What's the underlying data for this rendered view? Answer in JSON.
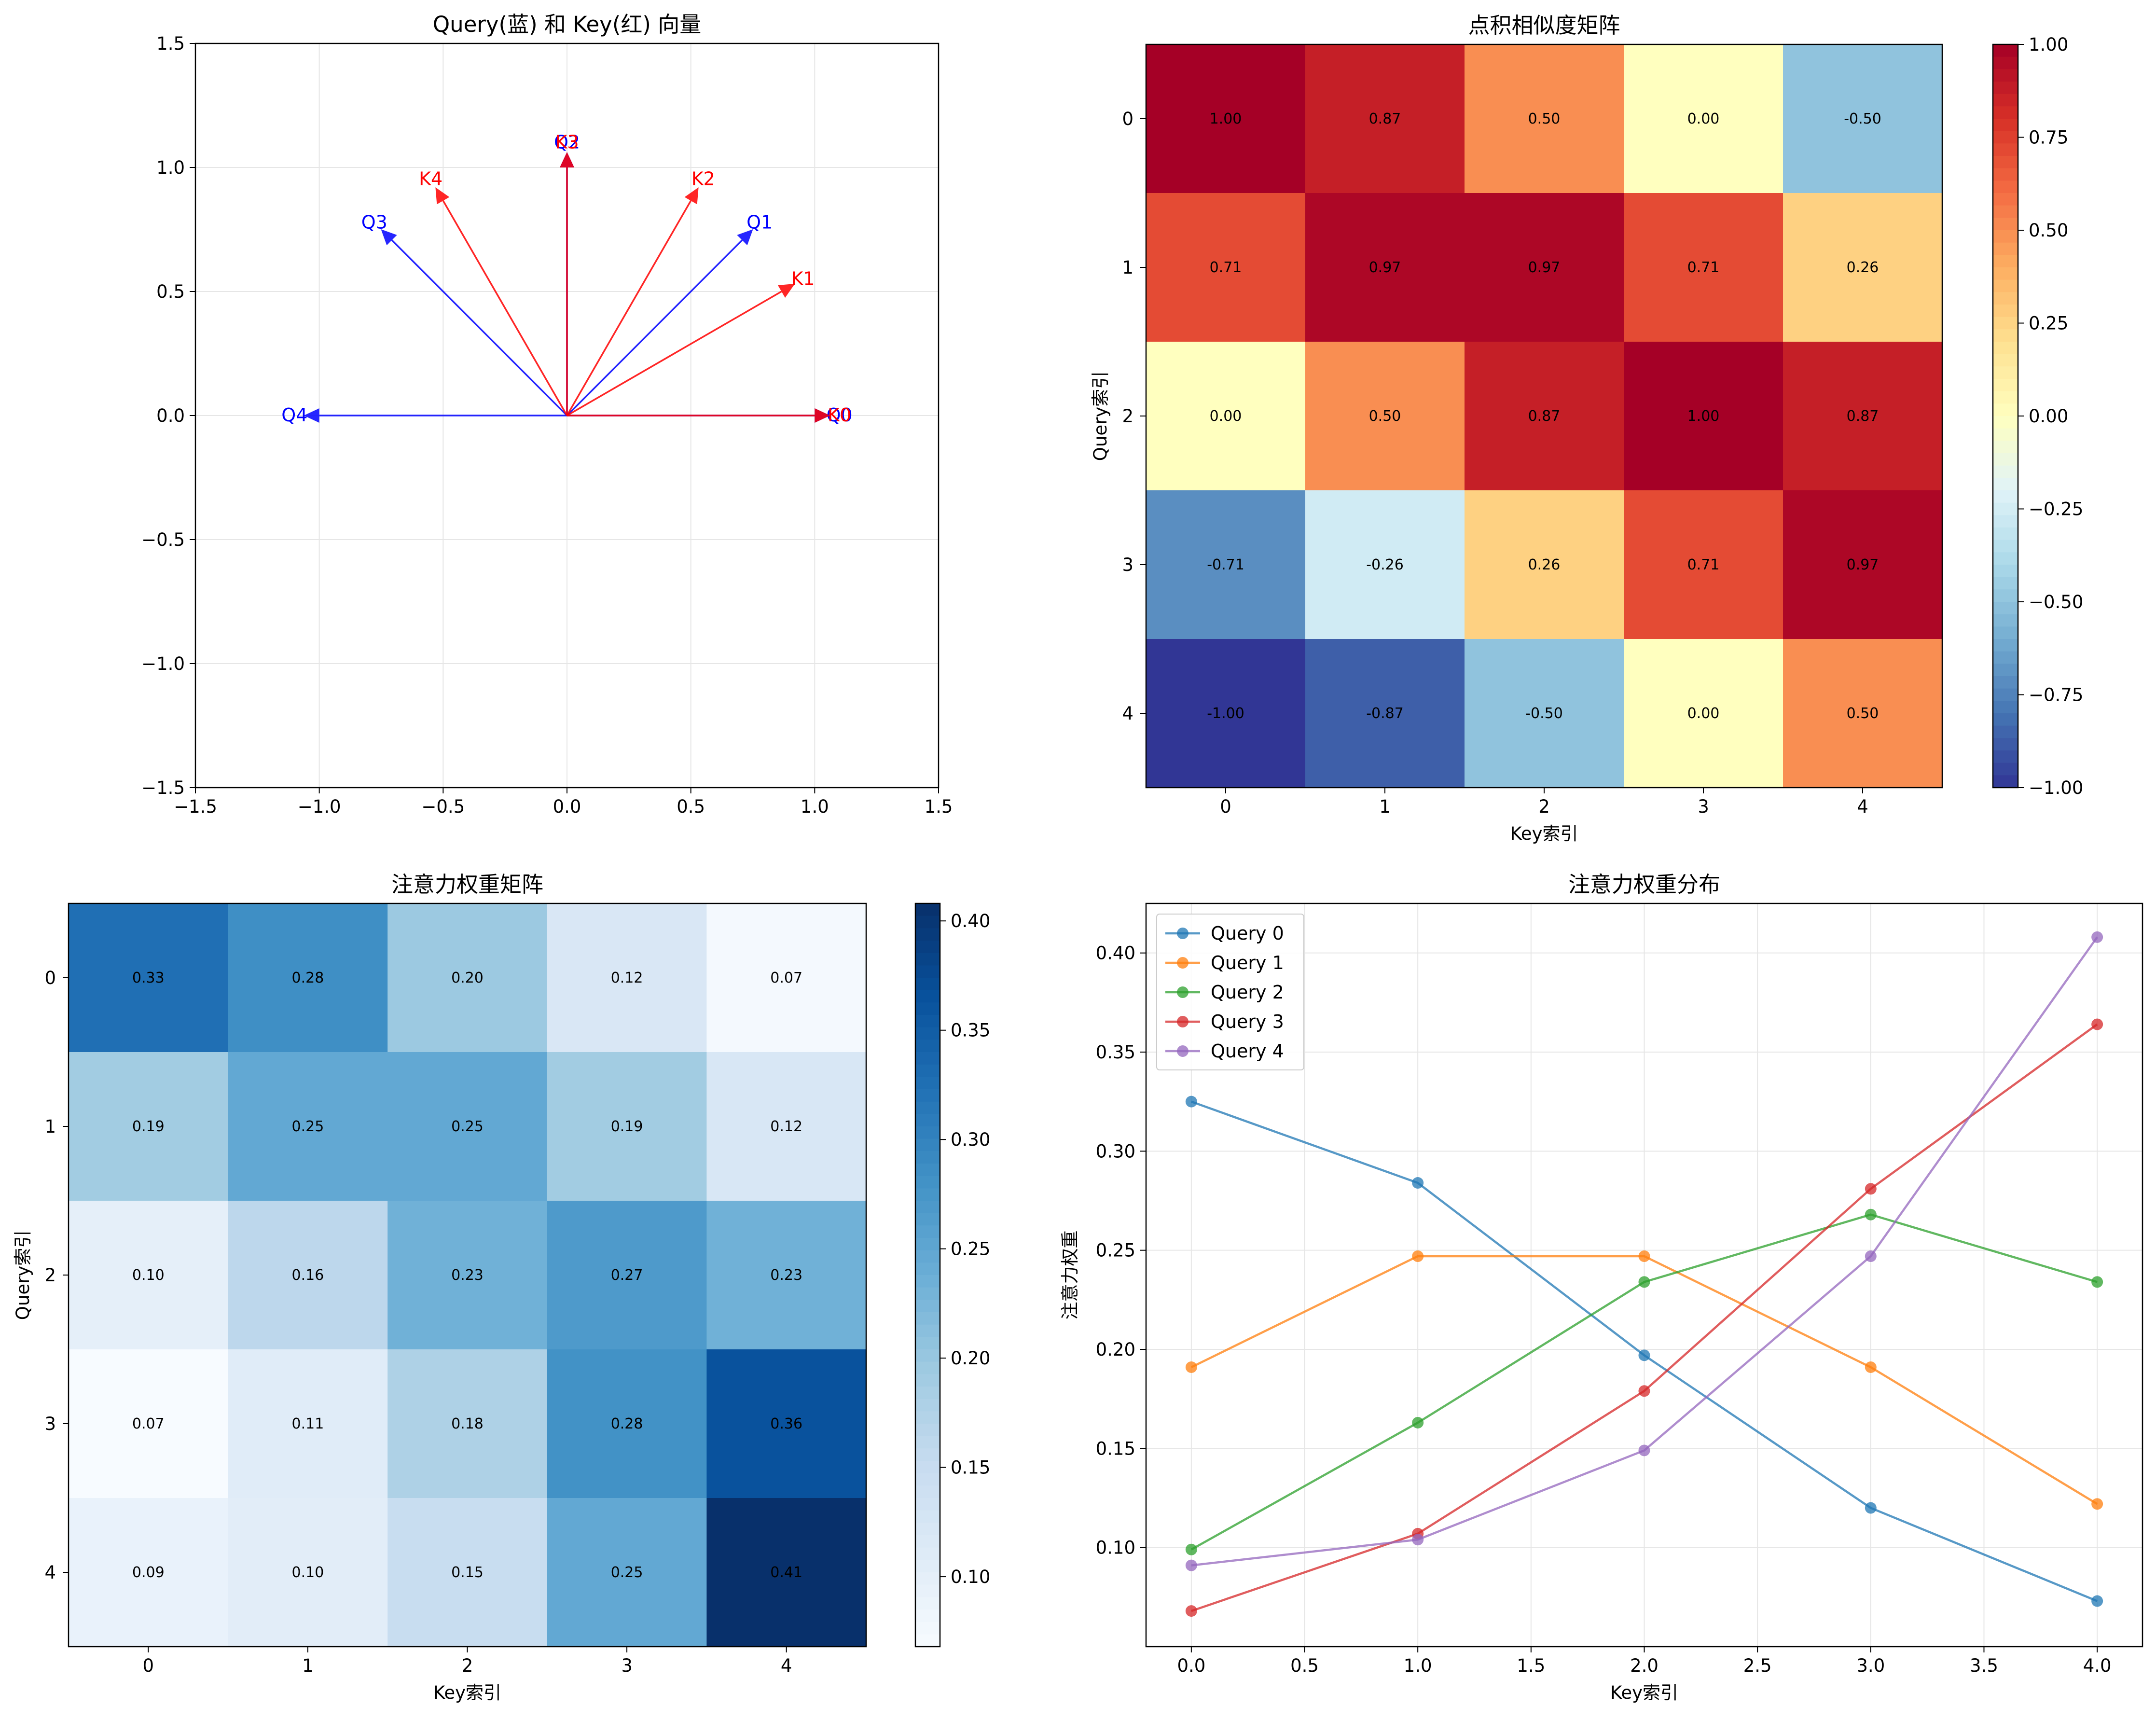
{
  "chart_data": [
    {
      "type": "vector",
      "title": "Query(蓝) 和 Key(红) 向量",
      "xlim": [
        -1.5,
        1.5
      ],
      "ylim": [
        -1.5,
        1.5
      ],
      "xticks": [
        "−1.5",
        "−1.0",
        "−0.5",
        "0.0",
        "0.5",
        "1.0",
        "1.5"
      ],
      "yticks": [
        "−1.5",
        "−1.0",
        "−0.5",
        "0.0",
        "0.5",
        "1.0",
        "1.5"
      ],
      "grid": true,
      "queries": [
        {
          "name": "Q0",
          "x": 1.0,
          "y": 0.0
        },
        {
          "name": "Q1",
          "x": 0.707,
          "y": 0.707
        },
        {
          "name": "Q2",
          "x": 0.0,
          "y": 1.0
        },
        {
          "name": "Q3",
          "x": -0.707,
          "y": 0.707
        },
        {
          "name": "Q4",
          "x": -1.0,
          "y": 0.0
        }
      ],
      "keys": [
        {
          "name": "K0",
          "x": 1.0,
          "y": 0.0
        },
        {
          "name": "K1",
          "x": 0.866,
          "y": 0.5
        },
        {
          "name": "K2",
          "x": 0.5,
          "y": 0.866
        },
        {
          "name": "K3",
          "x": 0.0,
          "y": 1.0
        },
        {
          "name": "K4",
          "x": -0.5,
          "y": 0.866
        }
      ],
      "query_color": "#0000ff",
      "key_color": "#ff0000"
    },
    {
      "type": "heatmap",
      "title": "点积相似度矩阵",
      "xlabel": "Key索引",
      "ylabel": "Query索引",
      "categories_x": [
        "0",
        "1",
        "2",
        "3",
        "4"
      ],
      "categories_y": [
        "0",
        "1",
        "2",
        "3",
        "4"
      ],
      "colormap": "RdYlBu_r",
      "vmin": -1.0,
      "vmax": 1.0,
      "colorbar_ticks": [
        "−1.00",
        "−0.75",
        "−0.50",
        "−0.25",
        "0.00",
        "0.25",
        "0.50",
        "0.75",
        "1.00"
      ],
      "values": [
        [
          1.0,
          0.87,
          0.5,
          0.0,
          -0.5
        ],
        [
          0.71,
          0.97,
          0.97,
          0.71,
          0.26
        ],
        [
          0.0,
          0.5,
          0.87,
          1.0,
          0.87
        ],
        [
          -0.71,
          -0.26,
          0.26,
          0.71,
          0.97
        ],
        [
          -1.0,
          -0.87,
          -0.5,
          0.0,
          0.5
        ]
      ],
      "labels": [
        [
          "1.00",
          "0.87",
          "0.50",
          "0.00",
          "-0.50"
        ],
        [
          "0.71",
          "0.97",
          "0.97",
          "0.71",
          "0.26"
        ],
        [
          "0.00",
          "0.50",
          "0.87",
          "1.00",
          "0.87"
        ],
        [
          "-0.71",
          "-0.26",
          "0.26",
          "0.71",
          "0.97"
        ],
        [
          "-1.00",
          "-0.87",
          "-0.50",
          "0.00",
          "0.50"
        ]
      ]
    },
    {
      "type": "heatmap",
      "title": "注意力权重矩阵",
      "xlabel": "Key索引",
      "ylabel": "Query索引",
      "categories_x": [
        "0",
        "1",
        "2",
        "3",
        "4"
      ],
      "categories_y": [
        "0",
        "1",
        "2",
        "3",
        "4"
      ],
      "colormap": "Blues",
      "vmin": 0.068,
      "vmax": 0.408,
      "colorbar_ticks": [
        "0.10",
        "0.15",
        "0.20",
        "0.25",
        "0.30",
        "0.35",
        "0.40"
      ],
      "colorbar_tick_values": [
        0.1,
        0.15,
        0.2,
        0.25,
        0.3,
        0.35,
        0.4
      ],
      "values": [
        [
          0.325,
          0.284,
          0.197,
          0.12,
          0.073
        ],
        [
          0.191,
          0.247,
          0.247,
          0.191,
          0.122
        ],
        [
          0.099,
          0.163,
          0.234,
          0.268,
          0.234
        ],
        [
          0.068,
          0.107,
          0.179,
          0.281,
          0.364
        ],
        [
          0.091,
          0.104,
          0.149,
          0.247,
          0.408
        ]
      ],
      "labels": [
        [
          "0.33",
          "0.28",
          "0.20",
          "0.12",
          "0.07"
        ],
        [
          "0.19",
          "0.25",
          "0.25",
          "0.19",
          "0.12"
        ],
        [
          "0.10",
          "0.16",
          "0.23",
          "0.27",
          "0.23"
        ],
        [
          "0.07",
          "0.11",
          "0.18",
          "0.28",
          "0.36"
        ],
        [
          "0.09",
          "0.10",
          "0.15",
          "0.25",
          "0.41"
        ]
      ]
    },
    {
      "type": "line",
      "title": "注意力权重分布",
      "xlabel": "Key索引",
      "ylabel": "注意力权重",
      "xlim": [
        -0.2,
        4.2
      ],
      "ylim": [
        0.05,
        0.425
      ],
      "xticks": [
        "0.0",
        "0.5",
        "1.0",
        "1.5",
        "2.0",
        "2.5",
        "3.0",
        "3.5",
        "4.0"
      ],
      "xtick_values": [
        0,
        0.5,
        1,
        1.5,
        2,
        2.5,
        3,
        3.5,
        4
      ],
      "yticks": [
        "0.10",
        "0.15",
        "0.20",
        "0.25",
        "0.30",
        "0.35",
        "0.40"
      ],
      "ytick_values": [
        0.1,
        0.15,
        0.2,
        0.25,
        0.3,
        0.35,
        0.4
      ],
      "grid": true,
      "legend": "top-left",
      "x": [
        0,
        1,
        2,
        3,
        4
      ],
      "series": [
        {
          "name": "Query 0",
          "color": "#1f77b4",
          "values": [
            0.325,
            0.284,
            0.197,
            0.12,
            0.073
          ]
        },
        {
          "name": "Query 1",
          "color": "#ff7f0e",
          "values": [
            0.191,
            0.247,
            0.247,
            0.191,
            0.122
          ]
        },
        {
          "name": "Query 2",
          "color": "#2ca02c",
          "values": [
            0.099,
            0.163,
            0.234,
            0.268,
            0.234
          ]
        },
        {
          "name": "Query 3",
          "color": "#d62728",
          "values": [
            0.068,
            0.107,
            0.179,
            0.281,
            0.364
          ]
        },
        {
          "name": "Query 4",
          "color": "#9467bd",
          "values": [
            0.091,
            0.104,
            0.149,
            0.247,
            0.408
          ]
        }
      ]
    }
  ]
}
